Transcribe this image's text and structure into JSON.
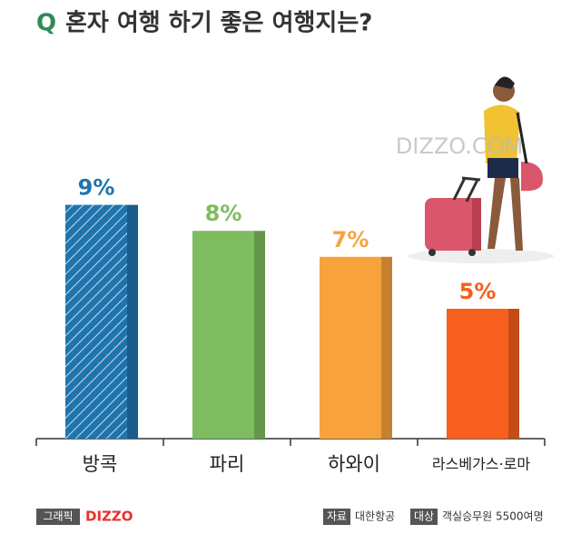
{
  "chart_data": {
    "type": "bar",
    "q_mark": "Q",
    "title": "혼자 여행 하기 좋은 여행지는?",
    "categories": [
      "방콕",
      "파리",
      "하와이",
      "라스베가스·로마"
    ],
    "values": [
      9,
      8,
      7,
      5
    ],
    "value_labels": [
      "9%",
      "8%",
      "7%",
      "5%"
    ],
    "colors": [
      "#1f74ae",
      "#7ebc60",
      "#f8a23c",
      "#f65f1d"
    ],
    "hatch": [
      true,
      false,
      false,
      false
    ]
  },
  "watermark": "DIZZO.COM",
  "credits": {
    "graphic_label": "그래픽",
    "graphic_brand": "DIZZO",
    "source_label": "자료",
    "source": "대한항공",
    "target_label": "대상",
    "target": "객실승무원 5500여명"
  }
}
